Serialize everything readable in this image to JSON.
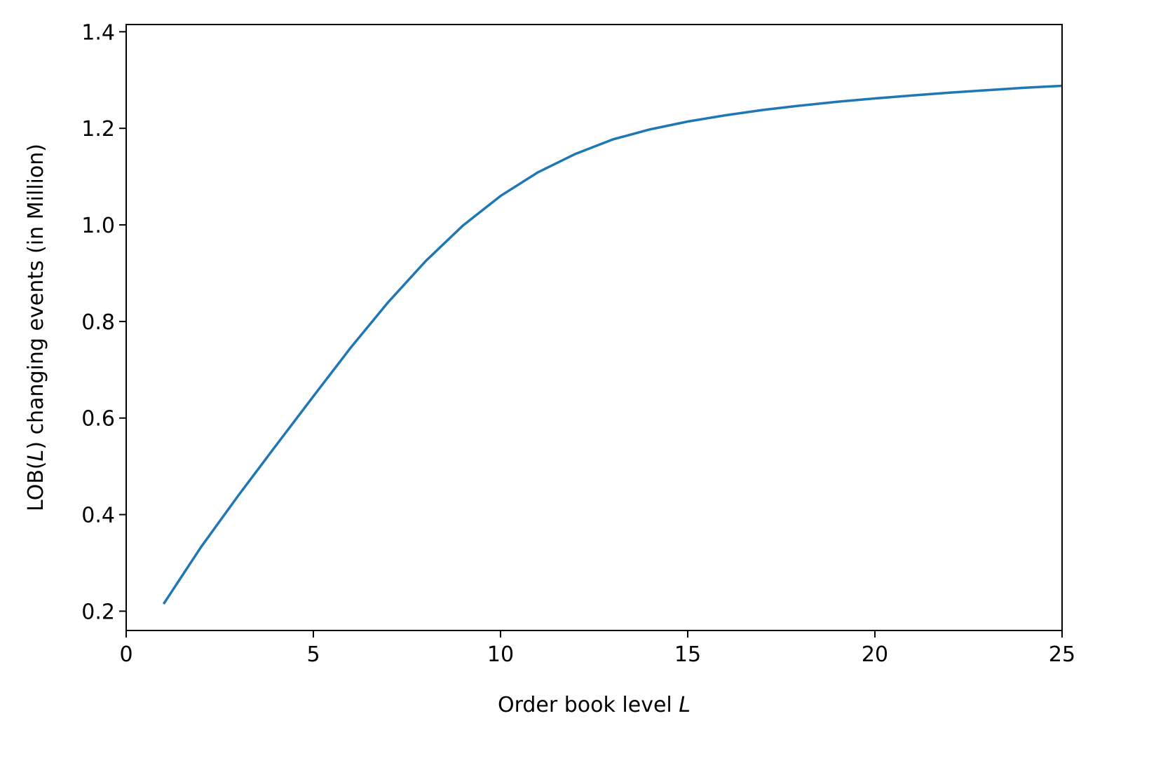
{
  "chart_data": {
    "type": "line",
    "title": "",
    "xlabel": {
      "prefix": "Order book level ",
      "italic": "L",
      "suffix": ""
    },
    "ylabel": {
      "prefix": "LOB(",
      "italic": "L",
      "suffix": ") changing events (in Million)"
    },
    "xlim": [
      0,
      25
    ],
    "ylim": [
      0.16,
      1.415
    ],
    "xticks": [
      0,
      5,
      10,
      15,
      20,
      25
    ],
    "xtick_labels": [
      "0",
      "5",
      "10",
      "15",
      "20",
      "25"
    ],
    "yticks": [
      0.2,
      0.4,
      0.6,
      0.8,
      1.0,
      1.2,
      1.4
    ],
    "ytick_labels": [
      "0.2",
      "0.4",
      "0.6",
      "0.8",
      "1.0",
      "1.2",
      "1.4"
    ],
    "grid": false,
    "series": [
      {
        "color": "#1f77b4",
        "x": [
          1,
          2,
          3,
          4,
          5,
          6,
          7,
          8,
          9,
          10,
          11,
          12,
          13,
          14,
          15,
          16,
          17,
          18,
          19,
          20,
          21,
          22,
          23,
          24,
          25
        ],
        "y": [
          0.215,
          0.333,
          0.44,
          0.543,
          0.645,
          0.746,
          0.84,
          0.925,
          0.999,
          1.06,
          1.109,
          1.147,
          1.177,
          1.198,
          1.214,
          1.227,
          1.238,
          1.247,
          1.255,
          1.262,
          1.268,
          1.274,
          1.279,
          1.284,
          1.288
        ]
      }
    ]
  }
}
